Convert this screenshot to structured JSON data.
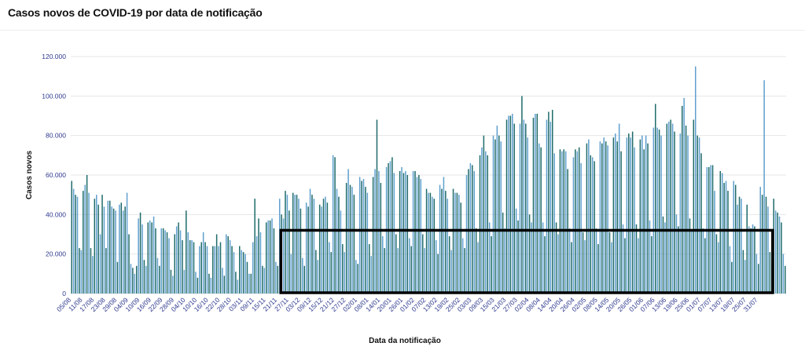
{
  "chart_data": {
    "type": "bar",
    "title": "Casos novos de COVID-19 por data de notificação",
    "xlabel": "Data da notificação",
    "ylabel": "Casos novos",
    "ylim": [
      0,
      120000
    ],
    "yticks": [
      "0",
      "20.000",
      "40.000",
      "60.000",
      "80.000",
      "100.000",
      "120.000"
    ],
    "ytick_values": [
      0,
      20000,
      40000,
      60000,
      80000,
      100000,
      120000
    ],
    "xtick_labels": [
      "05/08",
      "11/08",
      "17/08",
      "23/08",
      "29/08",
      "04/09",
      "10/09",
      "16/09",
      "22/09",
      "28/09",
      "04/10",
      "10/10",
      "16/10",
      "22/10",
      "28/10",
      "03/11",
      "09/11",
      "15/11",
      "21/11",
      "27/11",
      "03/12",
      "09/12",
      "15/12",
      "21/12",
      "27/12",
      "02/01",
      "08/01",
      "14/01",
      "20/01",
      "26/01",
      "01/02",
      "07/02",
      "13/02",
      "19/02",
      "25/02",
      "03/03",
      "09/03",
      "15/03",
      "21/03",
      "27/03",
      "02/04",
      "08/04",
      "14/04",
      "20/04",
      "26/04",
      "02/05",
      "08/05",
      "14/05",
      "20/05",
      "26/05",
      "01/06",
      "07/06",
      "13/06",
      "19/06",
      "25/06",
      "01/07",
      "07/07",
      "13/07",
      "19/07",
      "25/07",
      "31/07"
    ],
    "series": [
      {
        "name": "Casos novos",
        "values": [
          57000,
          53000,
          50000,
          49000,
          23000,
          22000,
          52000,
          55000,
          60000,
          51000,
          23000,
          19000,
          48000,
          50000,
          45000,
          30000,
          50000,
          44000,
          23000,
          47000,
          47000,
          44000,
          43000,
          42000,
          16000,
          45000,
          46000,
          42000,
          44000,
          51000,
          30000,
          15000,
          13000,
          10000,
          14000,
          38000,
          41000,
          35000,
          17000,
          14000,
          36000,
          37000,
          36000,
          39000,
          33000,
          18000,
          14000,
          33000,
          33000,
          32000,
          31000,
          28000,
          12000,
          9000,
          30000,
          34000,
          36000,
          32000,
          27000,
          12000,
          42000,
          31000,
          27000,
          27000,
          26000,
          11000,
          8000,
          24000,
          26000,
          31000,
          26000,
          24000,
          10000,
          8000,
          24000,
          24000,
          30000,
          24000,
          26000,
          13000,
          9000,
          30000,
          29000,
          27000,
          24000,
          21000,
          11000,
          7000,
          24000,
          22000,
          21000,
          20000,
          16000,
          10000,
          10000,
          26000,
          48000,
          29000,
          38000,
          31000,
          14000,
          13000,
          36000,
          37000,
          37000,
          38000,
          33000,
          16000,
          14000,
          48000,
          40000,
          38000,
          52000,
          50000,
          42000,
          20000,
          51000,
          50000,
          50000,
          48000,
          43000,
          18000,
          14000,
          46000,
          44000,
          53000,
          50000,
          48000,
          22000,
          17000,
          45000,
          44000,
          48000,
          49000,
          46000,
          26000,
          21000,
          70000,
          69000,
          53000,
          49000,
          42000,
          25000,
          21000,
          56000,
          63000,
          55000,
          54000,
          50000,
          17000,
          15000,
          59000,
          57000,
          58000,
          54000,
          51000,
          25000,
          19000,
          59000,
          63000,
          88000,
          62000,
          56000,
          29000,
          23000,
          64000,
          66000,
          67000,
          69000,
          61000,
          30000,
          23000,
          62000,
          64000,
          61000,
          62000,
          60000,
          28000,
          24000,
          62000,
          62000,
          59000,
          60000,
          58000,
          30000,
          23000,
          53000,
          51000,
          51000,
          49000,
          48000,
          27000,
          20000,
          55000,
          53000,
          59000,
          52000,
          48000,
          29000,
          22000,
          53000,
          51000,
          51000,
          50000,
          46000,
          28000,
          23000,
          60000,
          63000,
          66000,
          65000,
          62000,
          33000,
          26000,
          70000,
          74000,
          80000,
          72000,
          70000,
          36000,
          29000,
          80000,
          78000,
          85000,
          80000,
          77000,
          41000,
          33000,
          88000,
          90000,
          90000,
          91000,
          86000,
          43000,
          37000,
          86000,
          100000,
          88000,
          86000,
          79000,
          40000,
          36000,
          89000,
          91000,
          91000,
          76000,
          74000,
          36000,
          29000,
          88000,
          92000,
          87000,
          93000,
          71000,
          36000,
          30000,
          73000,
          72000,
          73000,
          72000,
          63000,
          33000,
          26000,
          69000,
          73000,
          72000,
          74000,
          66000,
          31000,
          27000,
          76000,
          78000,
          70000,
          69000,
          67000,
          33000,
          25000,
          77000,
          76000,
          79000,
          77000,
          75000,
          31000,
          26000,
          79000,
          81000,
          77000,
          86000,
          72000,
          35000,
          28000,
          79000,
          81000,
          79000,
          82000,
          74000,
          35000,
          28000,
          78000,
          80000,
          73000,
          80000,
          76000,
          37000,
          29000,
          84000,
          96000,
          84000,
          83000,
          80000,
          39000,
          36000,
          86000,
          87000,
          88000,
          86000,
          82000,
          40000,
          34000,
          81000,
          95000,
          99000,
          85000,
          80000,
          38000,
          32000,
          88000,
          115000,
          80000,
          79000,
          71000,
          33000,
          28000,
          64000,
          64000,
          65000,
          65000,
          52000,
          30000,
          26000,
          62000,
          61000,
          56000,
          57000,
          52000,
          24000,
          16000,
          57000,
          55000,
          45000,
          49000,
          48000,
          22000,
          17000,
          45000,
          34000,
          33000,
          35000,
          34000,
          20000,
          15000,
          54000,
          50000,
          108000,
          49000,
          44000,
          21000,
          17000,
          48000,
          42000,
          41000,
          39000,
          36000,
          20000,
          14000
        ]
      }
    ],
    "colors": {
      "primary": "#1f6b6a",
      "alternate": "#5f9fce"
    },
    "highlight_box": {
      "from_label": "21/11",
      "to_label": "31/07",
      "upper_value": 32000
    }
  }
}
